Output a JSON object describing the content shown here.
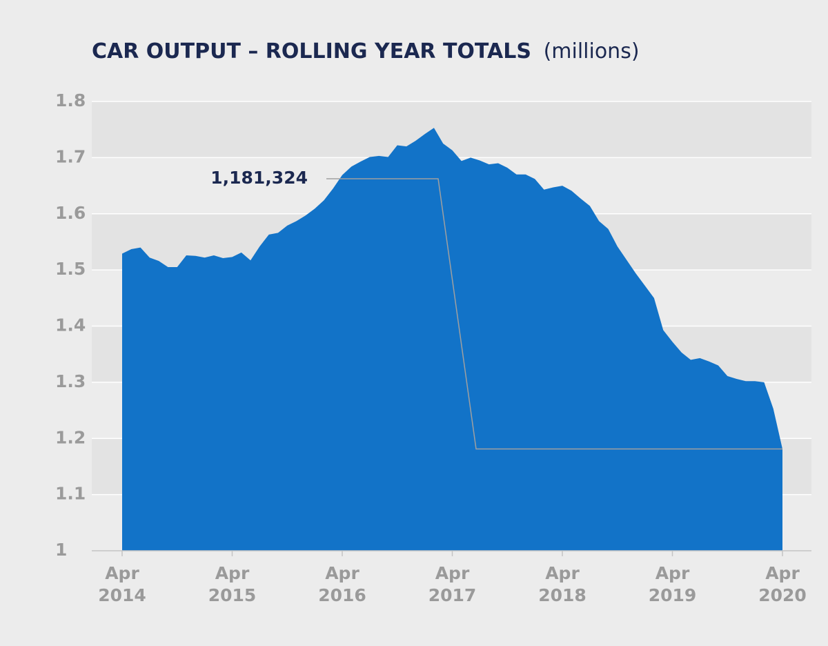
{
  "chart_data": {
    "type": "area",
    "title": "CAR OUTPUT – ROLLING YEAR TOTALS",
    "subtitle": "(millions)",
    "x": [
      "2014-04",
      "2014-05",
      "2014-06",
      "2014-07",
      "2014-08",
      "2014-09",
      "2014-10",
      "2014-11",
      "2014-12",
      "2015-01",
      "2015-02",
      "2015-03",
      "2015-04",
      "2015-05",
      "2015-06",
      "2015-07",
      "2015-08",
      "2015-09",
      "2015-10",
      "2015-11",
      "2015-12",
      "2016-01",
      "2016-02",
      "2016-03",
      "2016-04",
      "2016-05",
      "2016-06",
      "2016-07",
      "2016-08",
      "2016-09",
      "2016-10",
      "2016-11",
      "2016-12",
      "2017-01",
      "2017-02",
      "2017-03",
      "2017-04",
      "2017-05",
      "2017-06",
      "2017-07",
      "2017-08",
      "2017-09",
      "2017-10",
      "2017-11",
      "2017-12",
      "2018-01",
      "2018-02",
      "2018-03",
      "2018-04",
      "2018-05",
      "2018-06",
      "2018-07",
      "2018-08",
      "2018-09",
      "2018-10",
      "2018-11",
      "2018-12",
      "2019-01",
      "2019-02",
      "2019-03",
      "2019-04",
      "2019-05",
      "2019-06",
      "2019-07",
      "2019-08",
      "2019-09",
      "2019-10",
      "2019-11",
      "2019-12",
      "2020-01",
      "2020-02",
      "2020-03",
      "2020-04"
    ],
    "values": [
      1.529,
      1.537,
      1.54,
      1.522,
      1.516,
      1.505,
      1.505,
      1.526,
      1.525,
      1.522,
      1.526,
      1.521,
      1.523,
      1.531,
      1.517,
      1.542,
      1.563,
      1.566,
      1.579,
      1.587,
      1.597,
      1.609,
      1.624,
      1.645,
      1.669,
      1.684,
      1.693,
      1.701,
      1.703,
      1.701,
      1.722,
      1.72,
      1.73,
      1.742,
      1.753,
      1.725,
      1.713,
      1.694,
      1.7,
      1.695,
      1.688,
      1.69,
      1.682,
      1.67,
      1.67,
      1.662,
      1.643,
      1.647,
      1.65,
      1.641,
      1.627,
      1.614,
      1.587,
      1.573,
      1.542,
      1.518,
      1.494,
      1.472,
      1.45,
      1.393,
      1.372,
      1.353,
      1.34,
      1.343,
      1.337,
      1.33,
      1.311,
      1.306,
      1.302,
      1.302,
      1.3,
      1.253,
      1.181324
    ],
    "color": "#1273c8",
    "xlim": [
      "2014-04",
      "2020-04"
    ],
    "xticks": [
      {
        "value": "2014-04",
        "label": "Apr 2014"
      },
      {
        "value": "2015-04",
        "label": "Apr 2015"
      },
      {
        "value": "2016-04",
        "label": "Apr 2016"
      },
      {
        "value": "2017-04",
        "label": "Apr 2017"
      },
      {
        "value": "2018-04",
        "label": "Apr 2018"
      },
      {
        "value": "2019-04",
        "label": "Apr 2019"
      },
      {
        "value": "2020-04",
        "label": "Apr 2020"
      }
    ],
    "ylim": [
      1,
      1.8
    ],
    "yticks": [
      1,
      1.1,
      1.2,
      1.3,
      1.4,
      1.5,
      1.6,
      1.7,
      1.8
    ],
    "grid": true,
    "banded": true,
    "annotation": {
      "label": "1,181,324",
      "value": 1.181324
    }
  }
}
